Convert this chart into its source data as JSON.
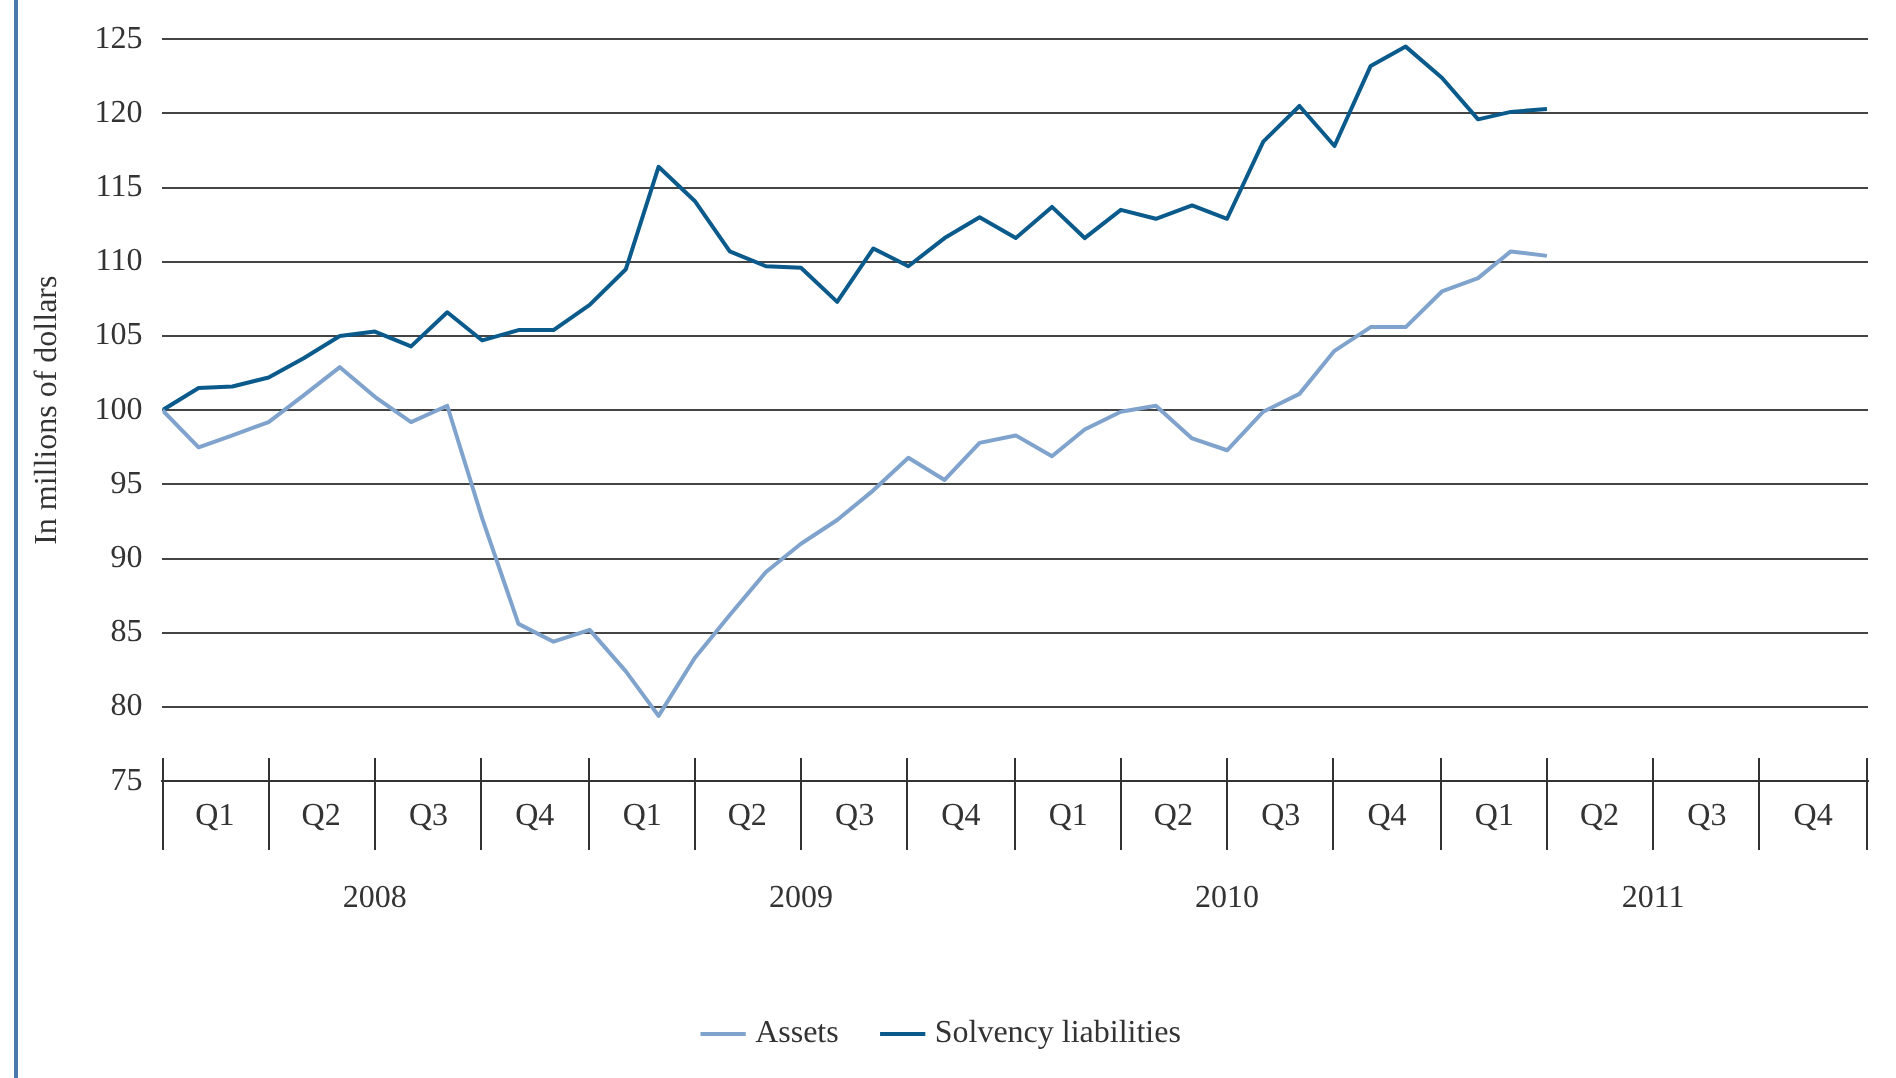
{
  "chart_data": {
    "type": "line",
    "ylabel": "In millions of dollars",
    "x": [
      "2008-01",
      "2008-02",
      "2008-03",
      "2008-04",
      "2008-05",
      "2008-06",
      "2008-07",
      "2008-08",
      "2008-09",
      "2008-10",
      "2008-11",
      "2008-12",
      "2009-01",
      "2009-02",
      "2009-03",
      "2009-04",
      "2009-05",
      "2009-06",
      "2009-07",
      "2009-08",
      "2009-09",
      "2009-10",
      "2009-11",
      "2009-12",
      "2010-01",
      "2010-02",
      "2010-03",
      "2010-04",
      "2010-05",
      "2010-06",
      "2010-07",
      "2010-08",
      "2010-09",
      "2010-10",
      "2010-11",
      "2010-12",
      "2011-01",
      "2011-02",
      "2011-03",
      "2011-04"
    ],
    "series": [
      {
        "name": "Assets",
        "color": "#7fa3cc",
        "values": [
          100,
          97.5,
          98.3,
          99.2,
          101.0,
          102.9,
          100.9,
          99.2,
          100.3,
          92.7,
          85.6,
          84.4,
          85.2,
          82.4,
          79.4,
          83.3,
          86.2,
          89.1,
          91.0,
          92.6,
          94.6,
          96.8,
          95.3,
          97.8,
          98.3,
          96.9,
          98.7,
          99.9,
          100.3,
          98.1,
          97.3,
          99.9,
          101.1,
          104.0,
          105.6,
          105.6,
          108.0,
          108.9,
          110.7,
          110.4
        ]
      },
      {
        "name": "Solvency liabilities",
        "color": "#0b5a8c",
        "values": [
          100,
          101.5,
          101.6,
          102.2,
          103.5,
          105.0,
          105.3,
          104.3,
          106.6,
          104.7,
          105.4,
          105.4,
          107.1,
          109.5,
          116.4,
          114.1,
          110.7,
          109.7,
          109.6,
          107.3,
          110.9,
          109.7,
          111.6,
          113.0,
          111.6,
          113.7,
          111.6,
          113.5,
          112.9,
          113.8,
          112.9,
          118.1,
          120.5,
          117.8,
          123.2,
          124.5,
          122.4,
          119.6,
          120.1,
          120.3
        ]
      }
    ],
    "xlim": [
      "2008-01",
      "2012-01"
    ],
    "xticks": [
      {
        "value": "2008-02-15",
        "label": "Q1"
      },
      {
        "value": "2008-05-16",
        "label": "Q2"
      },
      {
        "value": "2008-08-16",
        "label": "Q3"
      },
      {
        "value": "2008-11-15",
        "label": "Q4"
      },
      {
        "value": "2009-02-15",
        "label": "Q1"
      },
      {
        "value": "2009-05-16",
        "label": "Q2"
      },
      {
        "value": "2009-08-16",
        "label": "Q3"
      },
      {
        "value": "2009-11-15",
        "label": "Q4"
      },
      {
        "value": "2010-02-15",
        "label": "Q1"
      },
      {
        "value": "2010-05-16",
        "label": "Q2"
      },
      {
        "value": "2010-08-16",
        "label": "Q3"
      },
      {
        "value": "2010-11-15",
        "label": "Q4"
      },
      {
        "value": "2011-02-15",
        "label": "Q1"
      },
      {
        "value": "2011-05-16",
        "label": "Q2"
      },
      {
        "value": "2011-08-16",
        "label": "Q3"
      },
      {
        "value": "2011-11-15",
        "label": "Q4"
      }
    ],
    "x2lim": [
      "2008-01",
      "2012-01"
    ],
    "x2ticks": [
      {
        "value": "2008-07",
        "label": "2008"
      },
      {
        "value": "2009-07",
        "label": "2009"
      },
      {
        "value": "2010-07",
        "label": "2010"
      },
      {
        "value": "2011-07",
        "label": "2011"
      }
    ],
    "ylim": [
      75,
      125
    ],
    "yticks": [
      75,
      80,
      85,
      90,
      95,
      100,
      105,
      110,
      115,
      120,
      125
    ],
    "grid": "y",
    "legend": "bottom",
    "marker": "none",
    "line_style": "solid"
  }
}
